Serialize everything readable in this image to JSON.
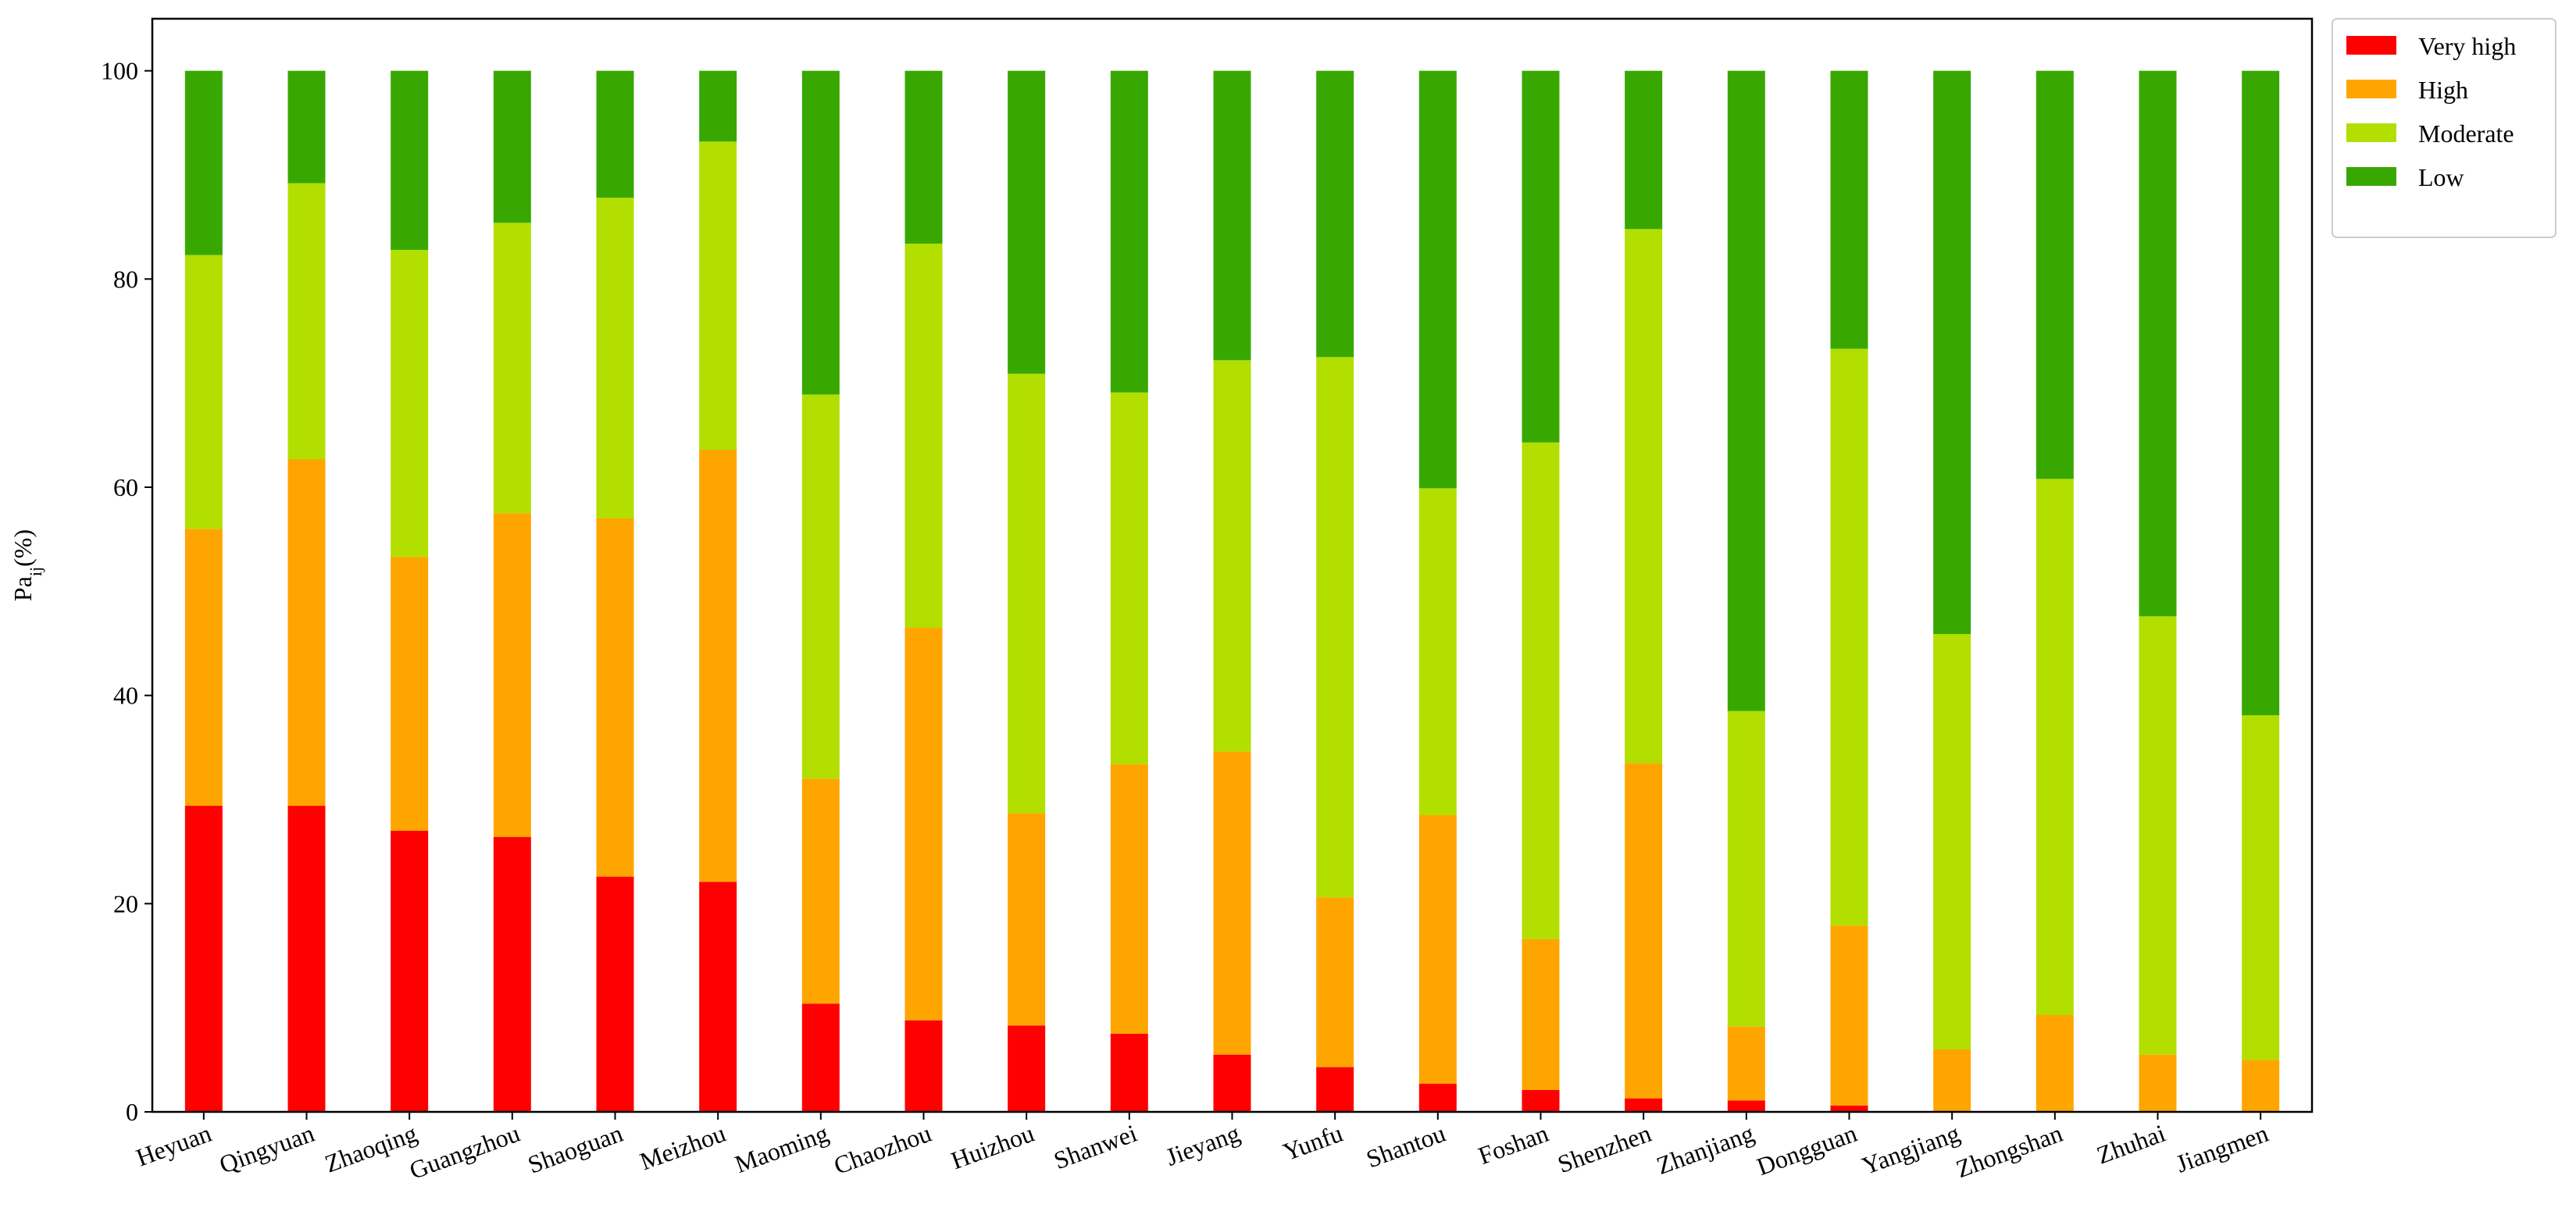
{
  "chart_data": {
    "type": "bar",
    "stacked": true,
    "title": "",
    "xlabel": "",
    "ylabel": "Pa",
    "ylabel_sub": "ij",
    "ylabel_suffix": "(%)",
    "ylim": [
      0,
      105
    ],
    "yticks": [
      0,
      20,
      40,
      60,
      80,
      100
    ],
    "legend_position": "top-right",
    "categories": [
      "Heyuan",
      "Qingyuan",
      "Zhaoqing",
      "Guangzhou",
      "Shaoguan",
      "Meizhou",
      "Maoming",
      "Chaozhou",
      "Huizhou",
      "Shanwei",
      "Jieyang",
      "Yunfu",
      "Shantou",
      "Foshan",
      "Shenzhen",
      "Zhanjiang",
      "Dongguan",
      "Yangjiang",
      "Zhongshan",
      "Zhuhai",
      "Jiangmen"
    ],
    "series": [
      {
        "name": "Very high",
        "color": "#ff0000",
        "values": [
          29.4,
          29.4,
          27.0,
          26.4,
          22.6,
          22.1,
          10.4,
          8.8,
          8.3,
          7.5,
          5.5,
          4.3,
          2.7,
          2.1,
          1.3,
          1.1,
          0.6,
          0.0,
          0.0,
          0.0,
          0.0
        ]
      },
      {
        "name": "High",
        "color": "#ffa500",
        "values": [
          26.6,
          33.3,
          26.3,
          31.1,
          34.4,
          41.5,
          21.6,
          37.7,
          20.4,
          25.9,
          29.1,
          16.3,
          25.8,
          14.5,
          32.2,
          7.1,
          17.3,
          6.0,
          9.3,
          5.5,
          5.0
        ]
      },
      {
        "name": "Moderate",
        "color": "#b2df00",
        "values": [
          26.3,
          26.5,
          29.5,
          27.9,
          30.8,
          29.6,
          36.9,
          36.9,
          42.2,
          35.7,
          37.6,
          51.9,
          31.4,
          47.7,
          51.3,
          30.3,
          55.4,
          39.9,
          51.5,
          42.1,
          33.1
        ]
      },
      {
        "name": "Low",
        "color": "#38a800",
        "values": [
          17.7,
          10.8,
          17.2,
          14.6,
          12.2,
          6.8,
          31.1,
          16.6,
          29.1,
          30.9,
          27.8,
          27.5,
          40.1,
          35.7,
          15.2,
          61.5,
          26.7,
          54.1,
          39.2,
          52.4,
          61.9
        ]
      }
    ]
  }
}
